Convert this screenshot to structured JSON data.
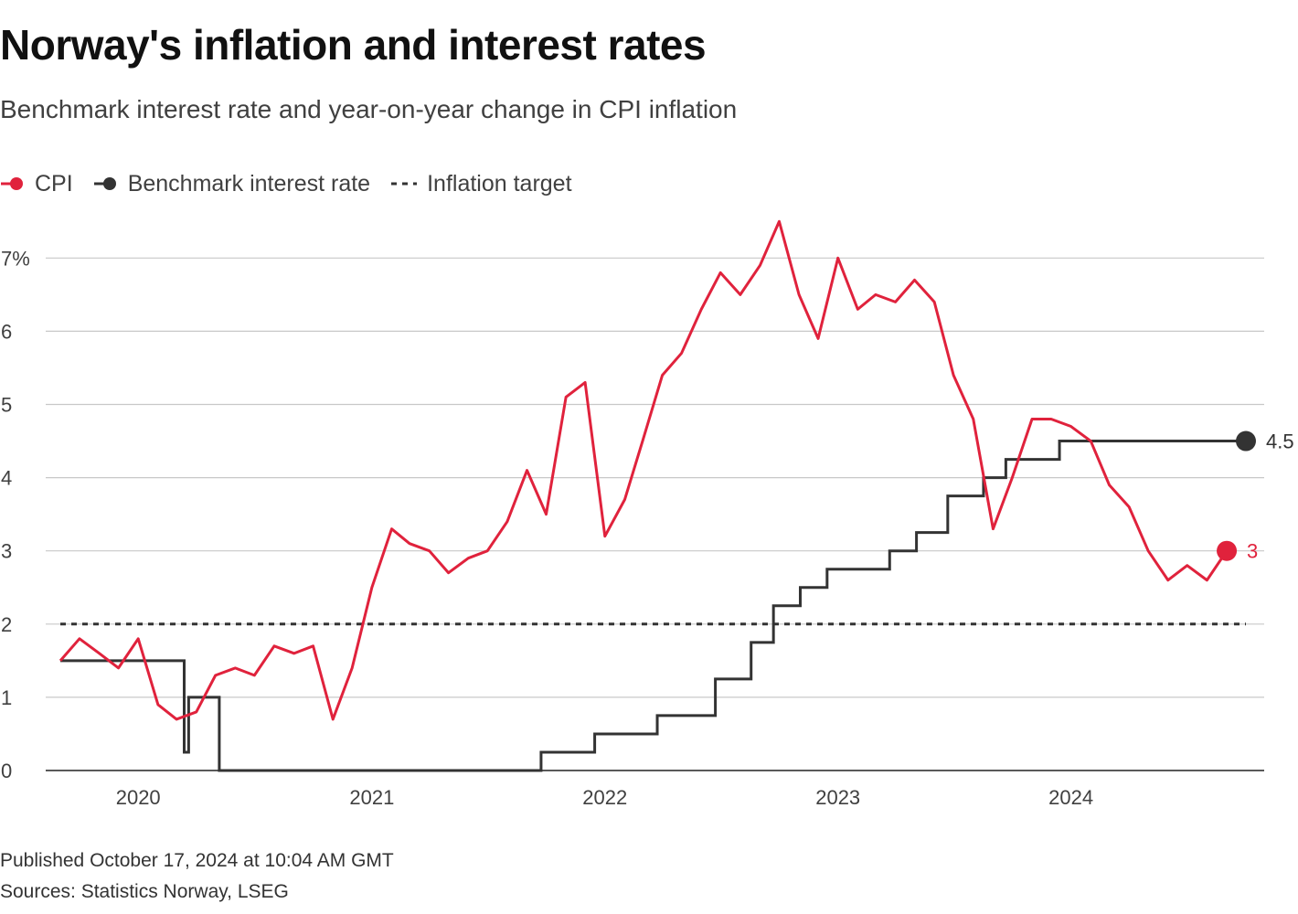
{
  "header": {
    "title": "Norway's inflation and interest rates",
    "subtitle": "Benchmark interest rate and year-on-year change in CPI inflation"
  },
  "legend": [
    {
      "label": "CPI",
      "color": "#e0223c",
      "marker": "line-dot"
    },
    {
      "label": "Benchmark interest rate",
      "color": "#333333",
      "marker": "line-dot"
    },
    {
      "label": "Inflation target",
      "color": "#333333",
      "marker": "dashed-line"
    }
  ],
  "footer": {
    "published": "Published October 17, 2024 at 10:04 AM GMT",
    "sources": "Sources: Statistics Norway, LSEG"
  },
  "chart_data": {
    "type": "line",
    "title": "Norway's inflation and interest rates",
    "subtitle": "Benchmark interest rate and year-on-year change in CPI inflation",
    "xlabel": "",
    "ylabel": "",
    "ylim": [
      0,
      7.5
    ],
    "y_ticks": [
      0,
      1,
      2,
      3,
      4,
      5,
      6,
      7
    ],
    "y_tick_labels": [
      "0",
      "1",
      "2",
      "3",
      "4",
      "5",
      "6",
      "7%"
    ],
    "x_ticks": [
      "2020",
      "2021",
      "2022",
      "2023",
      "2024"
    ],
    "x_range": [
      "2019-09",
      "2024-10"
    ],
    "grid": "horizontal",
    "legend_position": "top-left",
    "series": [
      {
        "name": "CPI",
        "color": "#e0223c",
        "end_label": "3",
        "x": [
          "2019-09",
          "2019-10",
          "2019-11",
          "2019-12",
          "2020-01",
          "2020-02",
          "2020-03",
          "2020-04",
          "2020-05",
          "2020-06",
          "2020-07",
          "2020-08",
          "2020-09",
          "2020-10",
          "2020-11",
          "2020-12",
          "2021-01",
          "2021-02",
          "2021-03",
          "2021-04",
          "2021-05",
          "2021-06",
          "2021-07",
          "2021-08",
          "2021-09",
          "2021-10",
          "2021-11",
          "2021-12",
          "2022-01",
          "2022-02",
          "2022-03",
          "2022-04",
          "2022-05",
          "2022-06",
          "2022-07",
          "2022-08",
          "2022-09",
          "2022-10",
          "2022-11",
          "2022-12",
          "2023-01",
          "2023-02",
          "2023-03",
          "2023-04",
          "2023-05",
          "2023-06",
          "2023-07",
          "2023-08",
          "2023-09",
          "2023-10",
          "2023-11",
          "2023-12",
          "2024-01",
          "2024-02",
          "2024-03",
          "2024-04",
          "2024-05",
          "2024-06",
          "2024-07",
          "2024-08",
          "2024-09"
        ],
        "values": [
          1.5,
          1.8,
          1.6,
          1.4,
          1.8,
          0.9,
          0.7,
          0.8,
          1.3,
          1.4,
          1.3,
          1.7,
          1.6,
          1.7,
          0.7,
          1.4,
          2.5,
          3.3,
          3.1,
          3.0,
          2.7,
          2.9,
          3.0,
          3.4,
          4.1,
          3.5,
          5.1,
          5.3,
          3.2,
          3.7,
          4.5,
          5.4,
          5.7,
          6.3,
          6.8,
          6.5,
          6.9,
          7.5,
          6.5,
          5.9,
          7.0,
          6.3,
          6.5,
          6.4,
          6.7,
          6.4,
          5.4,
          4.8,
          3.3,
          4.0,
          4.8,
          4.8,
          4.7,
          4.5,
          3.9,
          3.6,
          3.0,
          2.6,
          2.8,
          2.6,
          3.0
        ]
      },
      {
        "name": "Benchmark interest rate",
        "color": "#333333",
        "step": true,
        "end_label": "4.5",
        "x": [
          "2019-09-01",
          "2020-03-13",
          "2020-03-20",
          "2020-05-07",
          "2021-09-23",
          "2021-12-16",
          "2022-03-24",
          "2022-06-23",
          "2022-08-18",
          "2022-09-22",
          "2022-11-03",
          "2022-12-15",
          "2023-03-23",
          "2023-05-04",
          "2023-06-22",
          "2023-08-17",
          "2023-09-21",
          "2023-12-14",
          "2024-10-01"
        ],
        "values": [
          1.5,
          0.25,
          1.0,
          0.0,
          0.25,
          0.5,
          0.75,
          1.25,
          1.75,
          2.25,
          2.5,
          2.75,
          3.0,
          3.25,
          3.75,
          4.0,
          4.25,
          4.5,
          4.5
        ]
      },
      {
        "name": "Inflation target",
        "color": "#333333",
        "dashed": true,
        "x": [
          "2019-09",
          "2024-10"
        ],
        "values": [
          2.0,
          2.0
        ]
      }
    ]
  }
}
